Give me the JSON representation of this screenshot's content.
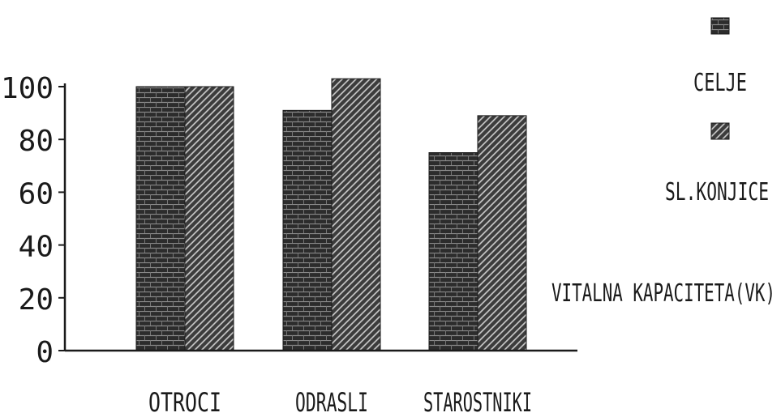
{
  "chart_data": {
    "type": "bar",
    "categories": [
      "OTROCI",
      "ODRASLI",
      "STAROSTNIKI"
    ],
    "series": [
      {
        "name": "CELJE",
        "values": [
          100,
          91,
          75
        ]
      },
      {
        "name": "SL.KONJICE",
        "values": [
          100,
          103,
          89
        ]
      }
    ],
    "yticks": [
      "100",
      "80",
      "60",
      "40",
      "20",
      "0"
    ],
    "ylim": [
      0,
      100
    ],
    "annotation": "VITALNA KAPACITETA(VK)",
    "legend_position": "right",
    "grid": false,
    "colors": {
      "CELJE": "#2a2a2a",
      "SL.KONJICE": "#3a3a3a",
      "axis": "#1a1a1a",
      "text": "#1a1a1a"
    }
  }
}
